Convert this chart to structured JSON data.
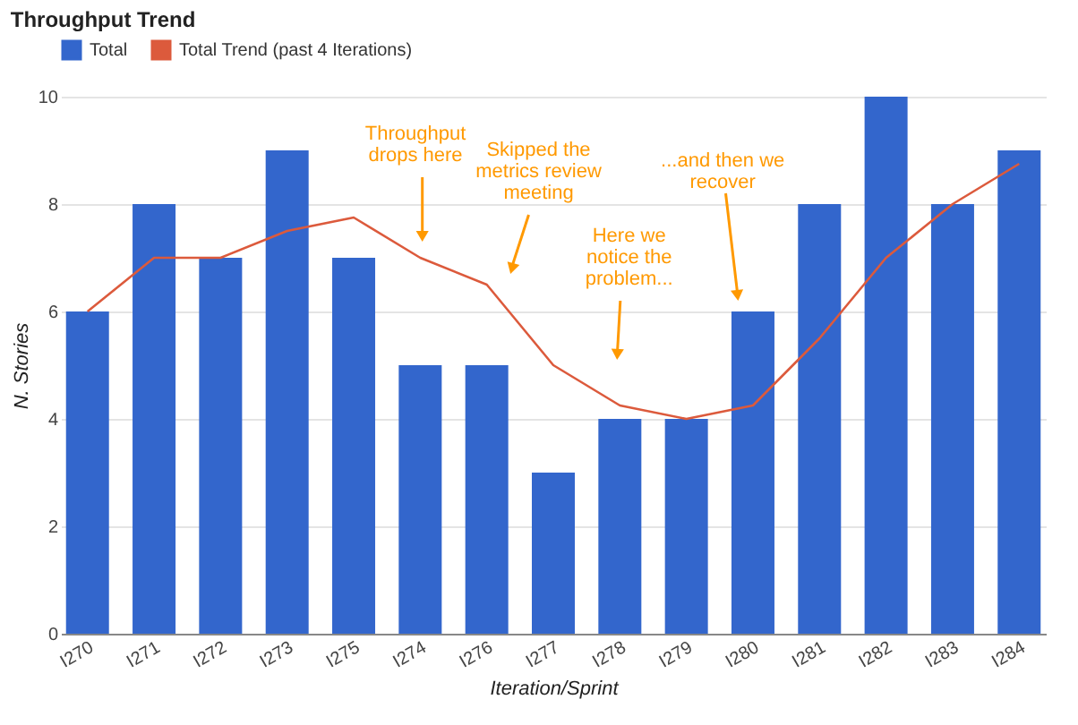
{
  "chart_data": {
    "type": "bar",
    "title": "Throughput Trend",
    "xlabel": "Iteration/Sprint",
    "ylabel": "N. Stories",
    "categories": [
      "I270",
      "I271",
      "I272",
      "I273",
      "I275",
      "I274",
      "I276",
      "I277",
      "I278",
      "I279",
      "I280",
      "I281",
      "I282",
      "I283",
      "I284"
    ],
    "series": [
      {
        "name": "Total",
        "color": "#3366cc",
        "values": [
          6,
          8,
          7,
          9,
          7,
          5,
          5,
          3,
          4,
          4,
          6,
          8,
          10,
          8,
          9
        ]
      },
      {
        "name": "Total Trend (past 4 Iterations)",
        "type": "line",
        "color": "#dc5a3c",
        "values": [
          6,
          7,
          7,
          7.5,
          7.75,
          7,
          6.5,
          5,
          4.25,
          4,
          4.25,
          5.5,
          7,
          8,
          8.75
        ]
      }
    ],
    "ylim": [
      0,
      10
    ],
    "yticks": [
      0,
      2,
      4,
      6,
      8,
      10
    ],
    "grid": "y",
    "legend": "top left",
    "annotations": [
      "Throughput\ndrops here",
      "Skipped the\nmetrics review\nmeeting",
      "Here we\nnotice the\nproblem...",
      "...and then we\nrecover"
    ]
  }
}
